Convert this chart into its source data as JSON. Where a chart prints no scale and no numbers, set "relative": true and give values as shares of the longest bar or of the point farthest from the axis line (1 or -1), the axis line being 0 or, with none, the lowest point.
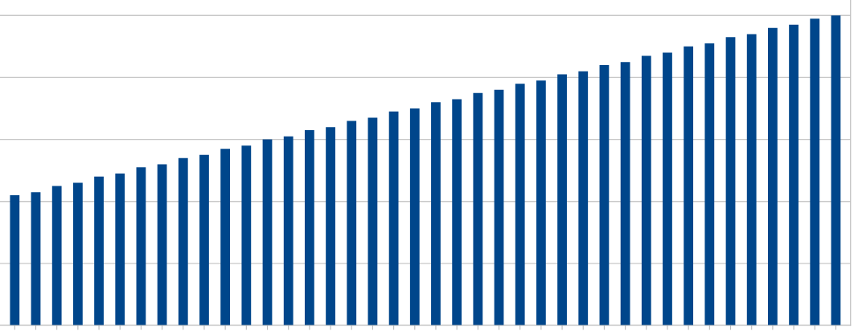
{
  "chart_data": {
    "type": "bar",
    "relative": true,
    "grid": "y",
    "categories": [
      null,
      null,
      null,
      null,
      null,
      null,
      null,
      null,
      null,
      null,
      null,
      null,
      null,
      null,
      null,
      null,
      null,
      null,
      null,
      null,
      null,
      null,
      null,
      null,
      null,
      null,
      null,
      null,
      null,
      null,
      null,
      null,
      null,
      null,
      null,
      null,
      null,
      null,
      null,
      null
    ],
    "series": [
      {
        "color": "#00468b",
        "values": [
          0.42,
          0.43,
          0.45,
          0.46,
          0.48,
          0.49,
          0.51,
          0.52,
          0.54,
          0.55,
          0.57,
          0.58,
          0.6,
          0.61,
          0.63,
          0.64,
          0.66,
          0.67,
          0.69,
          0.7,
          0.72,
          0.73,
          0.75,
          0.76,
          0.78,
          0.79,
          0.81,
          0.82,
          0.84,
          0.85,
          0.87,
          0.88,
          0.9,
          0.91,
          0.93,
          0.94,
          0.96,
          0.97,
          0.99,
          1.0
        ]
      }
    ]
  }
}
